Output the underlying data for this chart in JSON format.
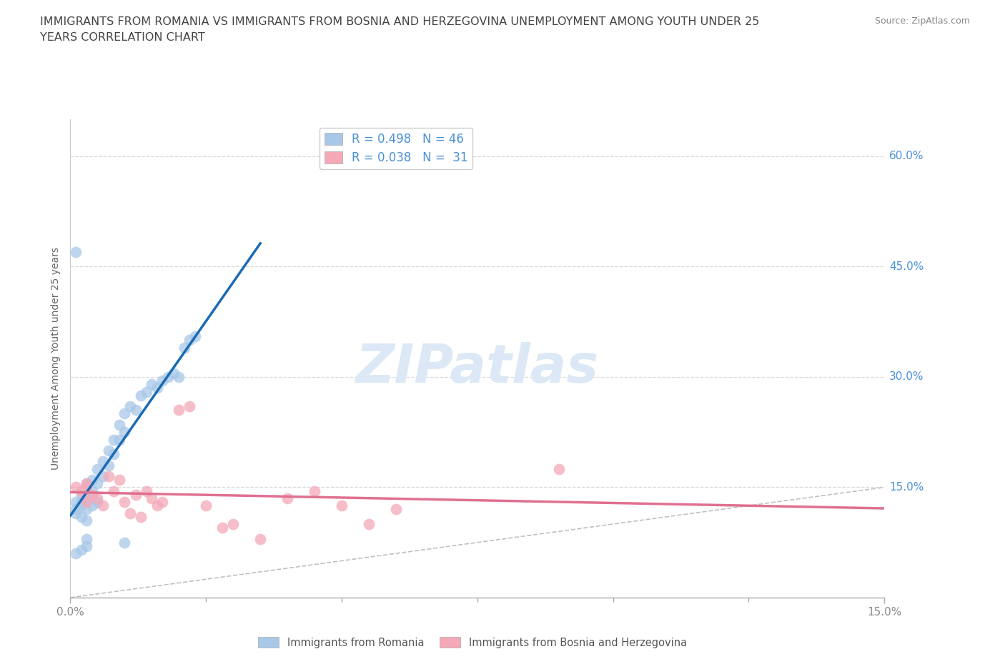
{
  "title_line1": "IMMIGRANTS FROM ROMANIA VS IMMIGRANTS FROM BOSNIA AND HERZEGOVINA UNEMPLOYMENT AMONG YOUTH UNDER 25",
  "title_line2": "YEARS CORRELATION CHART",
  "source": "Source: ZipAtlas.com",
  "xlim": [
    0.0,
    0.15
  ],
  "ylim": [
    0.0,
    0.65
  ],
  "romania_R": 0.498,
  "romania_N": 46,
  "bosnia_R": 0.038,
  "bosnia_N": 31,
  "romania_color": "#a8c8e8",
  "bosnia_color": "#f4a8b8",
  "romania_line_color": "#1a6bb5",
  "bosnia_line_color": "#e07090",
  "diagonal_color": "#c0c0c0",
  "grid_color": "#d8d8d8",
  "tick_color_y": "#4a90d9",
  "tick_color_x": "#888888",
  "ylabel_label": "Unemployment Among Youth under 25 years",
  "legend_text_color": "#4a90d9",
  "watermark_color": "#dce8f5",
  "romania_label": "Immigrants from Romania",
  "bosnia_label": "Immigrants from Bosnia and Herzegovina",
  "romania_x": [
    0.001,
    0.001,
    0.001,
    0.002,
    0.002,
    0.002,
    0.002,
    0.003,
    0.003,
    0.003,
    0.003,
    0.004,
    0.004,
    0.004,
    0.005,
    0.005,
    0.005,
    0.006,
    0.006,
    0.007,
    0.007,
    0.008,
    0.008,
    0.009,
    0.009,
    0.01,
    0.01,
    0.011,
    0.012,
    0.013,
    0.014,
    0.015,
    0.016,
    0.017,
    0.018,
    0.019,
    0.02,
    0.021,
    0.022,
    0.023,
    0.001,
    0.002,
    0.003,
    0.01,
    0.001,
    0.003
  ],
  "romania_y": [
    0.13,
    0.12,
    0.115,
    0.14,
    0.13,
    0.125,
    0.11,
    0.155,
    0.135,
    0.12,
    0.105,
    0.16,
    0.145,
    0.125,
    0.175,
    0.155,
    0.13,
    0.185,
    0.165,
    0.2,
    0.18,
    0.215,
    0.195,
    0.235,
    0.215,
    0.25,
    0.225,
    0.26,
    0.255,
    0.275,
    0.28,
    0.29,
    0.285,
    0.295,
    0.3,
    0.305,
    0.3,
    0.34,
    0.35,
    0.355,
    0.06,
    0.065,
    0.07,
    0.075,
    0.47,
    0.08
  ],
  "bosnia_x": [
    0.001,
    0.002,
    0.003,
    0.003,
    0.004,
    0.005,
    0.006,
    0.007,
    0.008,
    0.009,
    0.01,
    0.011,
    0.012,
    0.013,
    0.014,
    0.015,
    0.016,
    0.017,
    0.02,
    0.022,
    0.025,
    0.028,
    0.03,
    0.035,
    0.04,
    0.045,
    0.05,
    0.055,
    0.06,
    0.09,
    0.003
  ],
  "bosnia_y": [
    0.15,
    0.145,
    0.155,
    0.13,
    0.14,
    0.135,
    0.125,
    0.165,
    0.145,
    0.16,
    0.13,
    0.115,
    0.14,
    0.11,
    0.145,
    0.135,
    0.125,
    0.13,
    0.255,
    0.26,
    0.125,
    0.095,
    0.1,
    0.08,
    0.135,
    0.145,
    0.125,
    0.1,
    0.12,
    0.175,
    0.15
  ]
}
